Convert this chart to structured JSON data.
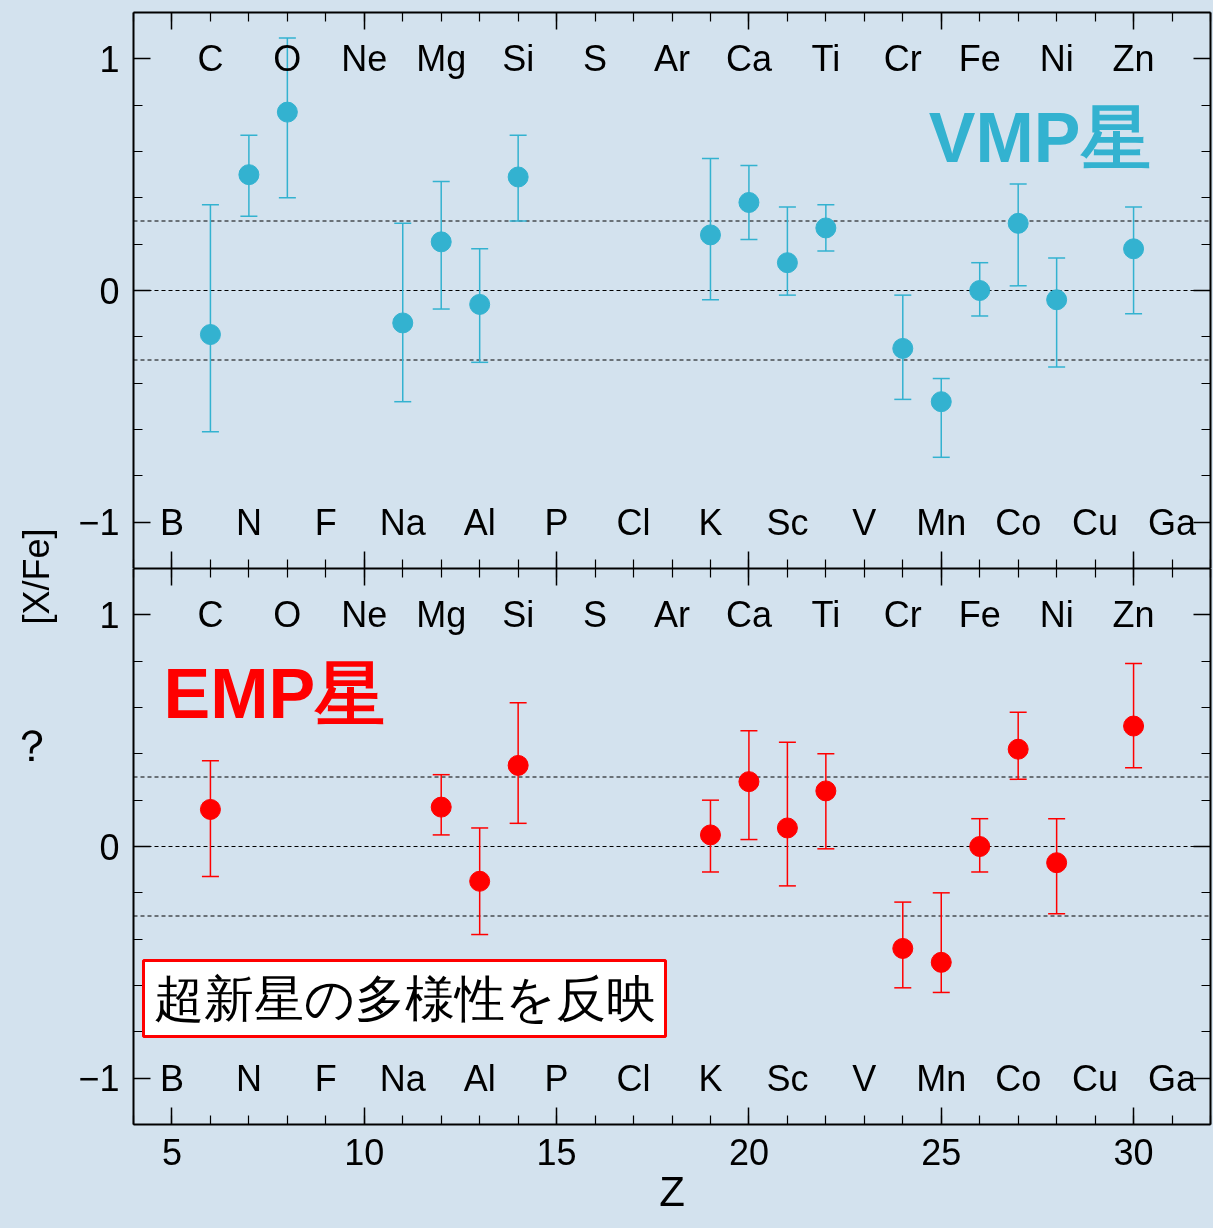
{
  "chart_data": [
    {
      "type": "scatter",
      "xlim": [
        4,
        32
      ],
      "xticks": [
        5,
        10,
        15,
        20,
        25,
        30
      ],
      "ylim": [
        -1.2,
        1.2
      ],
      "yticks": [
        -1,
        0,
        1
      ],
      "tick_labels": "y",
      "marker": "circle",
      "legend": "top right",
      "ref_lines": [
        {
          "axis": "y",
          "value": 0.3,
          "color": "#000000",
          "line_style": "dashed"
        },
        {
          "axis": "y",
          "value": 0,
          "color": "#000000",
          "line_style": "dashed"
        },
        {
          "axis": "y",
          "value": -0.3,
          "color": "#000000",
          "line_style": "dashed"
        }
      ],
      "annotations": [
        "B",
        "C",
        "N",
        "O",
        "F",
        "Ne",
        "Na",
        "Mg",
        "Al",
        "Si",
        "P",
        "S",
        "Cl",
        "Ar",
        "K",
        "Ca",
        "Sc",
        "Ti",
        "V",
        "Cr",
        "Mn",
        "Fe",
        "Co",
        "Ni",
        "Cu",
        "Zn",
        "Ga"
      ],
      "x": [
        6,
        7,
        8,
        11,
        12,
        13,
        14,
        19,
        20,
        21,
        22,
        24,
        25,
        26,
        27,
        28,
        30
      ],
      "series": [
        {
          "name": "VMP星",
          "color": "#33b2d0",
          "values": [
            -0.19,
            0.5,
            0.77,
            -0.14,
            0.21,
            -0.06,
            0.49,
            0.24,
            0.38,
            0.12,
            0.27,
            -0.25,
            -0.48,
            0.0,
            0.29,
            -0.04,
            0.18
          ],
          "errors": [
            [
              -0.61,
              0.37
            ],
            [
              0.32,
              0.67
            ],
            [
              0.4,
              1.09
            ],
            [
              -0.48,
              0.29
            ],
            [
              -0.08,
              0.47
            ],
            [
              -0.31,
              0.18
            ],
            [
              0.3,
              0.67
            ],
            [
              -0.04,
              0.57
            ],
            [
              0.22,
              0.54
            ],
            [
              -0.02,
              0.36
            ],
            [
              0.17,
              0.37
            ],
            [
              -0.47,
              -0.02
            ],
            [
              -0.72,
              -0.38
            ],
            [
              -0.11,
              0.12
            ],
            [
              0.02,
              0.46
            ],
            [
              -0.33,
              0.14
            ],
            [
              -0.1,
              0.36
            ]
          ]
        }
      ]
    },
    {
      "type": "scatter",
      "xlabel": "Z",
      "ylabel": "[X/Fe]",
      "xlim": [
        4,
        32
      ],
      "xticks": [
        5,
        10,
        15,
        20,
        25,
        30
      ],
      "ylim": [
        -1.2,
        1.2
      ],
      "yticks": [
        -1,
        0,
        1
      ],
      "marker": "circle",
      "legend": "top left",
      "ref_lines": [
        {
          "axis": "y",
          "value": 0.3,
          "color": "#000000",
          "line_style": "dashed"
        },
        {
          "axis": "y",
          "value": 0,
          "color": "#000000",
          "line_style": "dashed"
        },
        {
          "axis": "y",
          "value": -0.3,
          "color": "#000000",
          "line_style": "dashed"
        }
      ],
      "annotations": [
        "B",
        "C",
        "N",
        "O",
        "F",
        "Ne",
        "Na",
        "Mg",
        "Al",
        "Si",
        "P",
        "S",
        "Cl",
        "Ar",
        "K",
        "Ca",
        "Sc",
        "Ti",
        "V",
        "Cr",
        "Mn",
        "Fe",
        "Co",
        "Ni",
        "Cu",
        "Zn",
        "Ga",
        "超新星の多様性を反映",
        "？"
      ],
      "x": [
        6,
        11,
        12,
        13,
        14,
        19,
        20,
        21,
        22,
        24,
        25,
        26,
        27,
        28,
        30
      ],
      "series": [
        {
          "name": "EMP星",
          "color": "#ff0000",
          "values": [
            0.16,
            null,
            0.17,
            -0.15,
            0.35,
            0.05,
            0.28,
            0.08,
            0.24,
            -0.44,
            -0.5,
            0.0,
            0.42,
            -0.07,
            0.52
          ],
          "errors": [
            [
              -0.13,
              0.37
            ],
            null,
            [
              0.05,
              0.31
            ],
            0.23,
            [
              0.1,
              0.62
            ],
            [
              -0.11,
              0.2
            ],
            [
              0.03,
              0.5
            ],
            [
              -0.17,
              0.45
            ],
            [
              -0.01,
              0.4
            ],
            [
              -0.61,
              -0.24
            ],
            [
              -0.63,
              -0.2
            ],
            [
              -0.11,
              0.12
            ],
            [
              0.29,
              0.58
            ],
            [
              -0.29,
              0.12
            ],
            [
              0.34,
              0.79
            ]
          ]
        }
      ]
    }
  ]
}
